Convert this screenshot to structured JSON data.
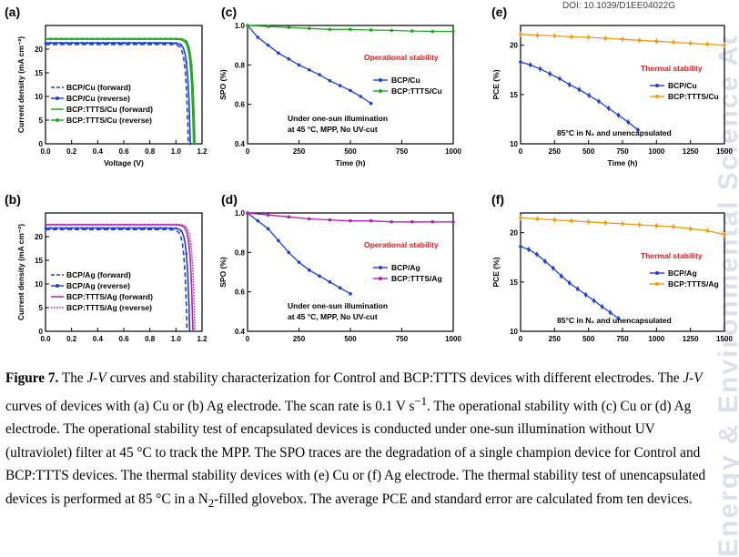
{
  "doi": "DOI: 10.1039/D1EE04022G",
  "watermark": "Energy & Environmental Science Accepted Manuscript",
  "caption": {
    "label": "Figure 7.",
    "p1": " The ",
    "jv1": "J-V",
    "p2": " curves and stability characterization for Control and BCP:TTTS devices with different electrodes. The ",
    "jv2": "J-V",
    "p3": " curves of devices with (a) Cu or (b) Ag electrode. The scan rate is 0.1 V s",
    "sup": "−1",
    "p4": ". The operational stability with (c) Cu or (d) Ag electrode. The operational stability test of encapsulated devices is conducted under one-sun illumination without UV (ultraviolet) filter at 45 °C to track the MPP. The SPO traces are the degradation of a single champion device for Control and BCP:TTTS devices. The thermal stability devices with (e) Cu or (f) Ag electrode. The thermal stability test of unencapsulated devices is performed at 85 °C in a N",
    "sub": "2",
    "p5": "-filled glovebox. The average PCE and standard error are calculated from ten devices."
  },
  "colors": {
    "blue": "#1f3fd0",
    "green": "#22a822",
    "magenta": "#b01eb8",
    "orange": "#f09a10"
  },
  "chart_data": [
    {
      "panel": "(a)",
      "type": "line",
      "xlabel": "Voltage (V)",
      "ylabel": "Current density (mA cm⁻²)",
      "xlim": [
        0,
        1.2
      ],
      "ylim": [
        0,
        25
      ],
      "xticks": [
        0.0,
        0.2,
        0.4,
        0.6,
        0.8,
        1.0,
        1.2
      ],
      "yticks": [
        0,
        5,
        10,
        15,
        20
      ],
      "xtick_labels": [
        "0.0",
        "0.2",
        "0.4",
        "0.6",
        "0.8",
        "1.0",
        "1.2"
      ],
      "legend_position": "bottom-left",
      "series": [
        {
          "name": "BCP/Cu (forward)",
          "color": "#1f3fd0",
          "style": "dashed",
          "jsc": 21.0,
          "voc": 1.095,
          "knee": 0.91
        },
        {
          "name": "BCP/Cu (reverse)",
          "color": "#1f3fd0",
          "style": "solid-marker",
          "jsc": 21.3,
          "voc": 1.11,
          "knee": 0.93
        },
        {
          "name": "BCP:TTTS/Cu (forward)",
          "color": "#22a822",
          "style": "solid",
          "jsc": 22.1,
          "voc": 1.135,
          "knee": 0.97
        },
        {
          "name": "BCP:TTTS/Cu (reverse)",
          "color": "#22a822",
          "style": "solid-marker",
          "jsc": 22.2,
          "voc": 1.145,
          "knee": 0.98
        }
      ]
    },
    {
      "panel": "(b)",
      "type": "line",
      "xlabel": "Voltage (V)",
      "ylabel": "Current density (mA cm⁻²)",
      "xlim": [
        0,
        1.2
      ],
      "ylim": [
        0,
        25
      ],
      "xticks": [
        0.0,
        0.2,
        0.4,
        0.6,
        0.8,
        1.0,
        1.2
      ],
      "yticks": [
        0,
        5,
        10,
        15,
        20
      ],
      "xtick_labels": [
        "0.0",
        "0.2",
        "0.4",
        "0.6",
        "0.8",
        "1.0",
        "1.2"
      ],
      "legend_position": "bottom-left",
      "series": [
        {
          "name": "BCP/Ag (forward)",
          "color": "#1f3fd0",
          "style": "dashed",
          "jsc": 21.5,
          "voc": 1.085,
          "knee": 0.86
        },
        {
          "name": "BCP/Ag (reverse)",
          "color": "#1f3fd0",
          "style": "solid-marker",
          "jsc": 21.8,
          "voc": 1.105,
          "knee": 0.9
        },
        {
          "name": "BCP:TTTS/Ag (forward)",
          "color": "#b01eb8",
          "style": "solid",
          "jsc": 22.5,
          "voc": 1.13,
          "knee": 0.96
        },
        {
          "name": "BCP:TTTS/Ag (reverse)",
          "color": "#b01eb8",
          "style": "dotted",
          "jsc": 22.6,
          "voc": 1.145,
          "knee": 0.97
        }
      ]
    },
    {
      "panel": "(c)",
      "type": "line",
      "xlabel": "Time (h)",
      "ylabel": "SPO (%)",
      "xlim": [
        0,
        1000
      ],
      "ylim": [
        0.4,
        1.0
      ],
      "xticks": [
        0,
        250,
        500,
        750,
        1000
      ],
      "yticks": [
        0.4,
        0.6,
        0.8,
        1.0
      ],
      "ytick_labels": [
        "0.4",
        "0.6",
        "0.8",
        "1.0"
      ],
      "legend_position": "right",
      "annotation_title": "Operational stability",
      "annotation_note": [
        "Under one-sun illumination",
        "at 45 °C, MPP, No UV-cut"
      ],
      "series": [
        {
          "name": "BCP/Cu",
          "color": "#1f3fd0",
          "x": [
            0,
            50,
            100,
            150,
            200,
            250,
            300,
            350,
            400,
            450,
            500,
            550,
            600
          ],
          "y": [
            1.0,
            0.94,
            0.9,
            0.86,
            0.83,
            0.8,
            0.775,
            0.75,
            0.72,
            0.695,
            0.67,
            0.64,
            0.605
          ]
        },
        {
          "name": "BCP:TTTS/Cu",
          "color": "#22a822",
          "x": [
            0,
            100,
            200,
            300,
            400,
            500,
            600,
            700,
            800,
            900,
            1000
          ],
          "y": [
            1.0,
            0.995,
            0.99,
            0.985,
            0.98,
            0.98,
            0.977,
            0.975,
            0.972,
            0.97,
            0.97
          ]
        }
      ]
    },
    {
      "panel": "(d)",
      "type": "line",
      "xlabel": "Time (h)",
      "ylabel": "SPO (%)",
      "xlim": [
        0,
        1000
      ],
      "ylim": [
        0.4,
        1.0
      ],
      "xticks": [
        0,
        250,
        500,
        750,
        1000
      ],
      "yticks": [
        0.4,
        0.6,
        0.8,
        1.0
      ],
      "ytick_labels": [
        "0.4",
        "0.6",
        "0.8",
        "1.0"
      ],
      "legend_position": "right",
      "annotation_title": "Operational stability",
      "annotation_note": [
        "Under one-sun illumination",
        "at 45 °C, MPP, No UV-cut"
      ],
      "series": [
        {
          "name": "BCP/Ag",
          "color": "#1f3fd0",
          "x": [
            0,
            50,
            100,
            150,
            200,
            250,
            300,
            350,
            400,
            450,
            500
          ],
          "y": [
            1.0,
            0.96,
            0.92,
            0.86,
            0.8,
            0.75,
            0.71,
            0.68,
            0.65,
            0.62,
            0.59
          ]
        },
        {
          "name": "BCP:TTTS/Ag",
          "color": "#b01eb8",
          "x": [
            0,
            100,
            200,
            300,
            400,
            500,
            600,
            700,
            800,
            900,
            1000
          ],
          "y": [
            1.0,
            0.99,
            0.98,
            0.97,
            0.965,
            0.96,
            0.96,
            0.955,
            0.955,
            0.955,
            0.955
          ]
        }
      ]
    },
    {
      "panel": "(e)",
      "type": "line",
      "xlabel": "Time (h)",
      "ylabel": "PCE (%)",
      "xlim": [
        0,
        1500
      ],
      "ylim": [
        10,
        22
      ],
      "xticks": [
        0,
        250,
        500,
        750,
        1000,
        1250,
        1500
      ],
      "yticks": [
        10,
        15,
        20
      ],
      "legend_position": "right",
      "annotation_title": "Thermal stability",
      "annotation_note": [
        "85°C in N₂ and unencapsulated"
      ],
      "series": [
        {
          "name": "BCP/Cu",
          "color": "#1f3fd0",
          "x": [
            0,
            72,
            144,
            216,
            288,
            360,
            432,
            504,
            576,
            648,
            720,
            792,
            864
          ],
          "y": [
            18.3,
            18.0,
            17.6,
            17.1,
            16.6,
            16.0,
            15.5,
            14.9,
            14.3,
            13.6,
            12.9,
            12.2,
            11.4
          ]
        },
        {
          "name": "BCP:TTTS/Cu",
          "color": "#f09a10",
          "x": [
            0,
            125,
            250,
            375,
            500,
            625,
            750,
            875,
            1000,
            1125,
            1250,
            1375,
            1500
          ],
          "y": [
            21.1,
            21.0,
            20.95,
            20.85,
            20.8,
            20.7,
            20.6,
            20.5,
            20.4,
            20.3,
            20.2,
            20.1,
            20.0
          ]
        }
      ]
    },
    {
      "panel": "(f)",
      "type": "line",
      "xlabel": "Time (h)",
      "ylabel": "PCE (%)",
      "xlim": [
        0,
        1500
      ],
      "ylim": [
        10,
        22
      ],
      "xticks": [
        0,
        250,
        500,
        750,
        1000,
        1250,
        1500
      ],
      "yticks": [
        10,
        15,
        20
      ],
      "legend_position": "right",
      "annotation_title": "Thermal stability",
      "annotation_note": [
        "85°C in N₂ and unencapsulated"
      ],
      "series": [
        {
          "name": "BCP/Ag",
          "color": "#1f3fd0",
          "x": [
            0,
            60,
            120,
            180,
            240,
            300,
            360,
            420,
            480,
            540,
            600,
            660,
            720
          ],
          "y": [
            18.6,
            18.3,
            17.8,
            17.1,
            16.4,
            15.6,
            14.9,
            14.3,
            13.7,
            13.1,
            12.5,
            11.9,
            11.3
          ]
        },
        {
          "name": "BCP:TTTS/Ag",
          "color": "#f09a10",
          "x": [
            0,
            125,
            250,
            375,
            500,
            625,
            750,
            875,
            1000,
            1125,
            1250,
            1375,
            1500
          ],
          "y": [
            21.5,
            21.4,
            21.3,
            21.2,
            21.1,
            21.0,
            20.9,
            20.8,
            20.7,
            20.6,
            20.4,
            20.2,
            19.8
          ]
        }
      ]
    }
  ]
}
